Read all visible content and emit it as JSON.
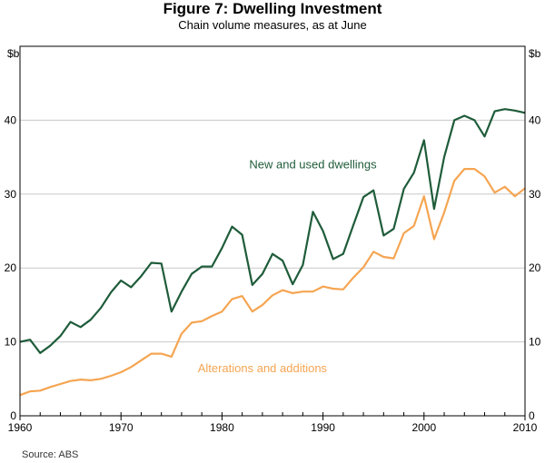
{
  "chart_data": {
    "type": "line",
    "title": "Figure 7: Dwelling Investment",
    "subtitle": "Chain volume measures, as at June",
    "y_unit_left": "$b",
    "y_unit_right": "$b",
    "ylim": [
      0,
      50
    ],
    "yticks": [
      0,
      10,
      20,
      30,
      40
    ],
    "xlim": [
      1960,
      2010
    ],
    "xticks": [
      1960,
      1970,
      1980,
      1990,
      2000,
      2010
    ],
    "source": "Source:  ABS",
    "grid": true,
    "series": [
      {
        "name": "New and used dwellings",
        "color": "#1f5c3a",
        "x": [
          1960,
          1961,
          1962,
          1963,
          1964,
          1965,
          1966,
          1967,
          1968,
          1969,
          1970,
          1971,
          1972,
          1973,
          1974,
          1975,
          1976,
          1977,
          1978,
          1979,
          1980,
          1981,
          1982,
          1983,
          1984,
          1985,
          1986,
          1987,
          1988,
          1989,
          1990,
          1991,
          1992,
          1993,
          1994,
          1995,
          1996,
          1997,
          1998,
          1999,
          2000,
          2001,
          2002,
          2003,
          2004,
          2005,
          2006,
          2007,
          2008,
          2009,
          2010
        ],
        "values": [
          10.0,
          10.3,
          8.5,
          9.5,
          10.8,
          12.7,
          12.0,
          13.0,
          14.6,
          16.7,
          18.3,
          17.4,
          18.9,
          20.7,
          20.6,
          14.1,
          16.8,
          19.2,
          20.2,
          20.2,
          22.7,
          25.6,
          24.5,
          17.7,
          19.2,
          21.9,
          21.0,
          17.8,
          20.4,
          27.6,
          25.0,
          21.2,
          21.9,
          25.8,
          29.6,
          30.5,
          24.4,
          25.3,
          30.7,
          32.9,
          37.3,
          28.0,
          35.0,
          40.0,
          40.6,
          40.0,
          37.8,
          41.2,
          41.5,
          41.3,
          41.0
        ]
      },
      {
        "name": "Alterations and additions",
        "color": "#f5a552",
        "x": [
          1960,
          1961,
          1962,
          1963,
          1964,
          1965,
          1966,
          1967,
          1968,
          1969,
          1970,
          1971,
          1972,
          1973,
          1974,
          1975,
          1976,
          1977,
          1978,
          1979,
          1980,
          1981,
          1982,
          1983,
          1984,
          1985,
          1986,
          1987,
          1988,
          1989,
          1990,
          1991,
          1992,
          1993,
          1994,
          1995,
          1996,
          1997,
          1998,
          1999,
          2000,
          2001,
          2002,
          2003,
          2004,
          2005,
          2006,
          2007,
          2008,
          2009,
          2010
        ],
        "values": [
          2.8,
          3.3,
          3.4,
          3.9,
          4.3,
          4.7,
          4.9,
          4.8,
          5.0,
          5.4,
          5.9,
          6.6,
          7.5,
          8.4,
          8.4,
          8.0,
          11.1,
          12.6,
          12.8,
          13.5,
          14.1,
          15.8,
          16.2,
          14.1,
          15.0,
          16.3,
          17.0,
          16.6,
          16.8,
          16.8,
          17.5,
          17.2,
          17.1,
          18.7,
          20.1,
          22.2,
          21.5,
          21.3,
          24.7,
          25.7,
          29.7,
          23.9,
          27.5,
          31.8,
          33.4,
          33.4,
          32.4,
          30.2,
          31.0,
          29.7,
          30.8
        ]
      }
    ],
    "annotations": [
      {
        "text": "New and used dwellings",
        "series": 0,
        "x": 1989,
        "y": 33.5
      },
      {
        "text": "Alterations and additions",
        "series": 1,
        "x": 1984,
        "y": 5.9
      }
    ]
  }
}
